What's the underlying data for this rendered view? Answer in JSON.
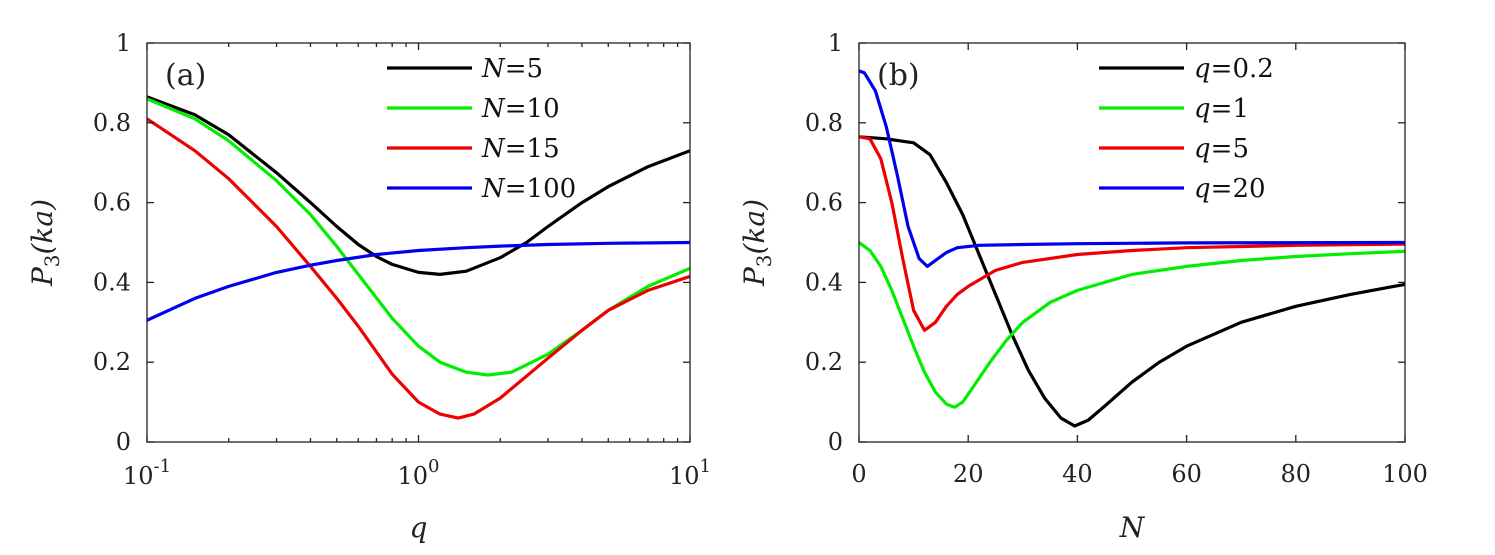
{
  "chart_data": [
    {
      "type": "line",
      "panel_label": "(a)",
      "xlabel": "q",
      "ylabel": "P_3(ka)",
      "xscale": "log",
      "xlim": [
        0.1,
        10
      ],
      "ylim": [
        0,
        1
      ],
      "x_ticks": [
        0.1,
        1,
        10
      ],
      "x_tick_labels": [
        {
          "base": "10",
          "exp": "-1"
        },
        {
          "base": "10",
          "exp": "0"
        },
        {
          "base": "10",
          "exp": "1"
        }
      ],
      "y_ticks": [
        0,
        0.2,
        0.4,
        0.6,
        0.8,
        1
      ],
      "y_tick_labels": [
        "0",
        "0.2",
        "0.4",
        "0.6",
        "0.8",
        "1"
      ],
      "legend_position": "top-right",
      "series": [
        {
          "name": "N=5",
          "var": "N",
          "value": "5",
          "color": "#000000",
          "x": [
            0.1,
            0.15,
            0.2,
            0.3,
            0.4,
            0.5,
            0.6,
            0.7,
            0.8,
            1.0,
            1.2,
            1.5,
            2.0,
            2.5,
            3.0,
            4.0,
            5.0,
            7.0,
            10.0
          ],
          "y": [
            0.865,
            0.82,
            0.77,
            0.675,
            0.6,
            0.54,
            0.495,
            0.465,
            0.445,
            0.425,
            0.42,
            0.428,
            0.462,
            0.5,
            0.54,
            0.6,
            0.64,
            0.69,
            0.73
          ]
        },
        {
          "name": "N=10",
          "var": "N",
          "value": "10",
          "color": "#00ee00",
          "x": [
            0.1,
            0.15,
            0.2,
            0.3,
            0.4,
            0.5,
            0.6,
            0.8,
            1.0,
            1.2,
            1.5,
            1.8,
            2.2,
            3.0,
            4.0,
            5.0,
            7.0,
            10.0
          ],
          "y": [
            0.86,
            0.81,
            0.755,
            0.655,
            0.57,
            0.49,
            0.42,
            0.31,
            0.24,
            0.2,
            0.175,
            0.168,
            0.175,
            0.22,
            0.28,
            0.33,
            0.39,
            0.435
          ]
        },
        {
          "name": "N=15",
          "var": "N",
          "value": "15",
          "color": "#ee0000",
          "x": [
            0.1,
            0.15,
            0.2,
            0.3,
            0.4,
            0.5,
            0.6,
            0.8,
            1.0,
            1.2,
            1.4,
            1.6,
            2.0,
            3.0,
            4.0,
            5.0,
            7.0,
            10.0
          ],
          "y": [
            0.81,
            0.73,
            0.66,
            0.54,
            0.44,
            0.36,
            0.29,
            0.17,
            0.1,
            0.07,
            0.06,
            0.07,
            0.11,
            0.21,
            0.28,
            0.33,
            0.38,
            0.415
          ]
        },
        {
          "name": "N=100",
          "var": "N",
          "value": "100",
          "color": "#0000ee",
          "x": [
            0.1,
            0.15,
            0.2,
            0.3,
            0.4,
            0.5,
            0.7,
            1.0,
            1.5,
            2.0,
            3.0,
            5.0,
            10.0
          ],
          "y": [
            0.305,
            0.36,
            0.39,
            0.425,
            0.443,
            0.455,
            0.47,
            0.48,
            0.487,
            0.491,
            0.495,
            0.498,
            0.5
          ]
        }
      ]
    },
    {
      "type": "line",
      "panel_label": "(b)",
      "xlabel": "N",
      "ylabel": "P_3(ka)",
      "xscale": "linear",
      "xlim": [
        0,
        100
      ],
      "ylim": [
        0,
        1
      ],
      "x_ticks": [
        0,
        20,
        40,
        60,
        80,
        100
      ],
      "x_tick_labels": [
        "0",
        "20",
        "40",
        "60",
        "80",
        "100"
      ],
      "y_ticks": [
        0,
        0.2,
        0.4,
        0.6,
        0.8,
        1
      ],
      "y_tick_labels": [
        "0",
        "0.2",
        "0.4",
        "0.6",
        "0.8",
        "1"
      ],
      "legend_position": "top-right",
      "series": [
        {
          "name": "q=0.2",
          "var": "q",
          "value": "0.2",
          "color": "#000000",
          "x": [
            0,
            5,
            10,
            13,
            16,
            19,
            22,
            25,
            28,
            31,
            34,
            37,
            39.5,
            42,
            45,
            50,
            55,
            60,
            70,
            80,
            90,
            100
          ],
          "y": [
            0.765,
            0.76,
            0.75,
            0.72,
            0.65,
            0.57,
            0.47,
            0.37,
            0.27,
            0.18,
            0.11,
            0.06,
            0.04,
            0.055,
            0.09,
            0.15,
            0.2,
            0.24,
            0.3,
            0.34,
            0.37,
            0.395
          ]
        },
        {
          "name": "q=1",
          "var": "q",
          "value": "1",
          "color": "#00ee00",
          "x": [
            0,
            2,
            4,
            6,
            8,
            10,
            12,
            14,
            16,
            17.5,
            19,
            21,
            24,
            27,
            30,
            35,
            40,
            50,
            60,
            70,
            80,
            90,
            100
          ],
          "y": [
            0.5,
            0.48,
            0.44,
            0.38,
            0.31,
            0.24,
            0.175,
            0.125,
            0.095,
            0.087,
            0.1,
            0.14,
            0.2,
            0.255,
            0.3,
            0.35,
            0.38,
            0.42,
            0.44,
            0.455,
            0.465,
            0.472,
            0.478
          ]
        },
        {
          "name": "q=5",
          "var": "q",
          "value": "5",
          "color": "#ee0000",
          "x": [
            0,
            2,
            4,
            6,
            8,
            10,
            12,
            14,
            16,
            18,
            20,
            25,
            30,
            40,
            50,
            60,
            80,
            100
          ],
          "y": [
            0.765,
            0.76,
            0.71,
            0.6,
            0.46,
            0.33,
            0.28,
            0.3,
            0.34,
            0.37,
            0.39,
            0.43,
            0.45,
            0.47,
            0.48,
            0.487,
            0.493,
            0.496
          ]
        },
        {
          "name": "q=20",
          "var": "q",
          "value": "20",
          "color": "#0000ee",
          "x": [
            0,
            1,
            3,
            5,
            7,
            9,
            11,
            12.5,
            14,
            16,
            18,
            22,
            30,
            40,
            60,
            100
          ],
          "y": [
            0.93,
            0.925,
            0.88,
            0.79,
            0.67,
            0.54,
            0.46,
            0.44,
            0.455,
            0.475,
            0.487,
            0.493,
            0.495,
            0.497,
            0.499,
            0.5
          ]
        }
      ]
    }
  ]
}
